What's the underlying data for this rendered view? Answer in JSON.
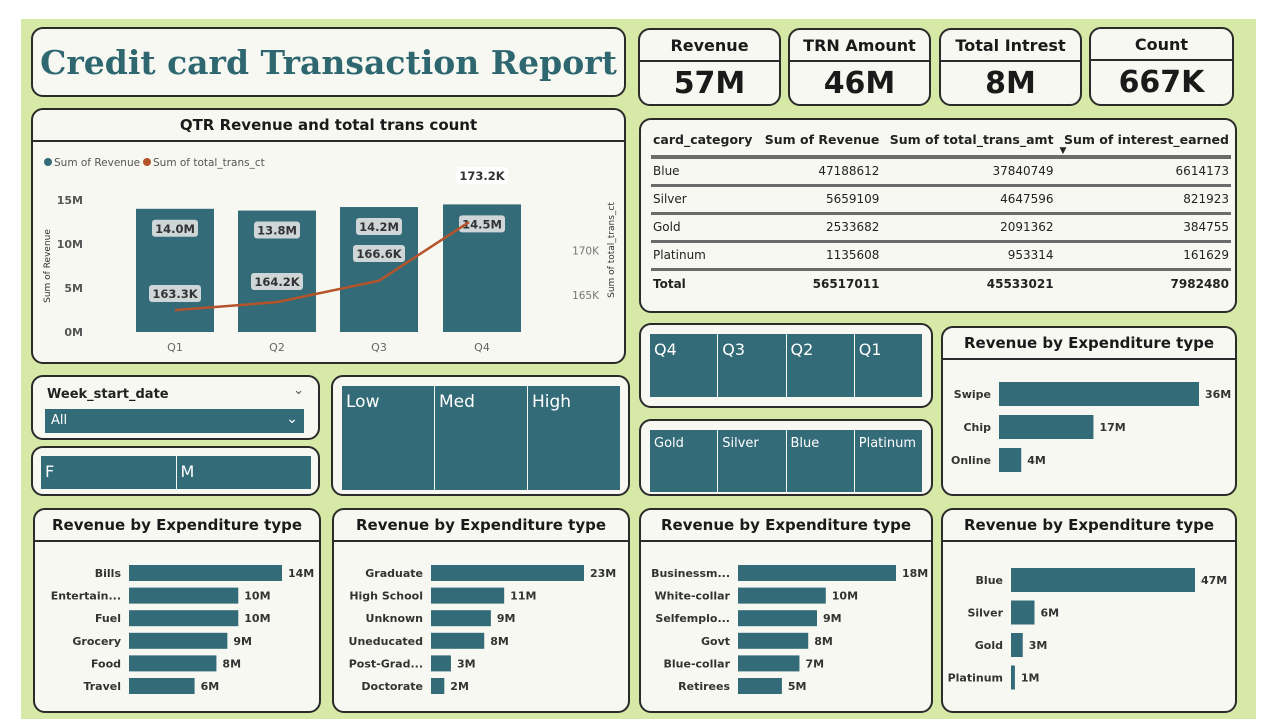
{
  "title": "Credit card Transaction Report",
  "kpis": [
    {
      "label": "Revenue",
      "value": "57M"
    },
    {
      "label": "TRN Amount",
      "value": "46M"
    },
    {
      "label": "Total Intrest",
      "value": "8M"
    },
    {
      "label": "Count",
      "value": "667K"
    }
  ],
  "colors": {
    "bar": "#336b78",
    "line": "#b5532a",
    "background": "#d6e9a6",
    "title": "#2e6770"
  },
  "table": {
    "headers": [
      "card_category",
      "Sum of Revenue",
      "Sum of total_trans_amt",
      "Sum of interest_earned"
    ],
    "sort_indicator": "▼",
    "rows": [
      [
        "Blue",
        "47188612",
        "37840749",
        "6614173"
      ],
      [
        "Silver",
        "5659109",
        "4647596",
        "821923"
      ],
      [
        "Gold",
        "2533682",
        "2091362",
        "384755"
      ],
      [
        "Platinum",
        "1135608",
        "953314",
        "161629"
      ]
    ],
    "total": [
      "Total",
      "56517011",
      "45533021",
      "7982480"
    ]
  },
  "slicers": {
    "week": {
      "label": "Week_start_date",
      "value": "All"
    },
    "gender": [
      "F",
      "M"
    ],
    "income": [
      "Low",
      "Med",
      "High"
    ],
    "quarter": [
      "Q4",
      "Q3",
      "Q2",
      "Q1"
    ],
    "card": [
      "Gold",
      "Silver",
      "Blue",
      "Platinum"
    ]
  },
  "chart_data": [
    {
      "type": "bar+line",
      "title": "QTR Revenue and total trans count",
      "categories": [
        "Q1",
        "Q2",
        "Q3",
        "Q4"
      ],
      "legend": [
        "Sum of Revenue",
        "Sum of total_trans_ct"
      ],
      "ylabel": "Sum of Revenue",
      "y2label": "Sum of total_trans_ct",
      "yticks": [
        "0M",
        "5M",
        "10M",
        "15M"
      ],
      "y2ticks": [
        "165K",
        "170K"
      ],
      "ylim": [
        0,
        15
      ],
      "y2lim": [
        161.5,
        173.5
      ],
      "series": [
        {
          "name": "Sum of Revenue",
          "values": [
            14.0,
            13.8,
            14.2,
            14.5
          ],
          "labels": [
            "14.0M",
            "13.8M",
            "14.2M",
            "14.5M"
          ]
        },
        {
          "name": "Sum of total_trans_ct",
          "values": [
            163.3,
            164.2,
            166.6,
            173.2
          ],
          "labels": [
            "163.3K",
            "164.2K",
            "166.6K",
            "173.2K"
          ]
        }
      ]
    },
    {
      "type": "bar",
      "title": "Revenue by Expenditure type",
      "categories": [
        "Swipe",
        "Chip",
        "Online"
      ],
      "values": [
        36,
        17,
        4
      ],
      "labels": [
        "36M",
        "17M",
        "4M"
      ]
    },
    {
      "type": "bar",
      "title": "Revenue by Expenditure type",
      "categories": [
        "Bills",
        "Entertain...",
        "Fuel",
        "Grocery",
        "Food",
        "Travel"
      ],
      "values": [
        14,
        10,
        10,
        9,
        8,
        6
      ],
      "labels": [
        "14M",
        "10M",
        "10M",
        "9M",
        "8M",
        "6M"
      ]
    },
    {
      "type": "bar",
      "title": "Revenue by Expenditure type",
      "categories": [
        "Graduate",
        "High School",
        "Unknown",
        "Uneducated",
        "Post-Grad...",
        "Doctorate"
      ],
      "values": [
        23,
        11,
        9,
        8,
        3,
        2
      ],
      "labels": [
        "23M",
        "11M",
        "9M",
        "8M",
        "3M",
        "2M"
      ]
    },
    {
      "type": "bar",
      "title": "Revenue by Expenditure type",
      "categories": [
        "Businessm...",
        "White-collar",
        "Selfemplo...",
        "Govt",
        "Blue-collar",
        "Retirees"
      ],
      "values": [
        18,
        10,
        9,
        8,
        7,
        5
      ],
      "labels": [
        "18M",
        "10M",
        "9M",
        "8M",
        "7M",
        "5M"
      ]
    },
    {
      "type": "bar",
      "title": "Revenue by Expenditure type",
      "categories": [
        "Blue",
        "Silver",
        "Gold",
        "Platinum"
      ],
      "values": [
        47,
        6,
        3,
        1
      ],
      "labels": [
        "47M",
        "6M",
        "3M",
        "1M"
      ]
    }
  ]
}
